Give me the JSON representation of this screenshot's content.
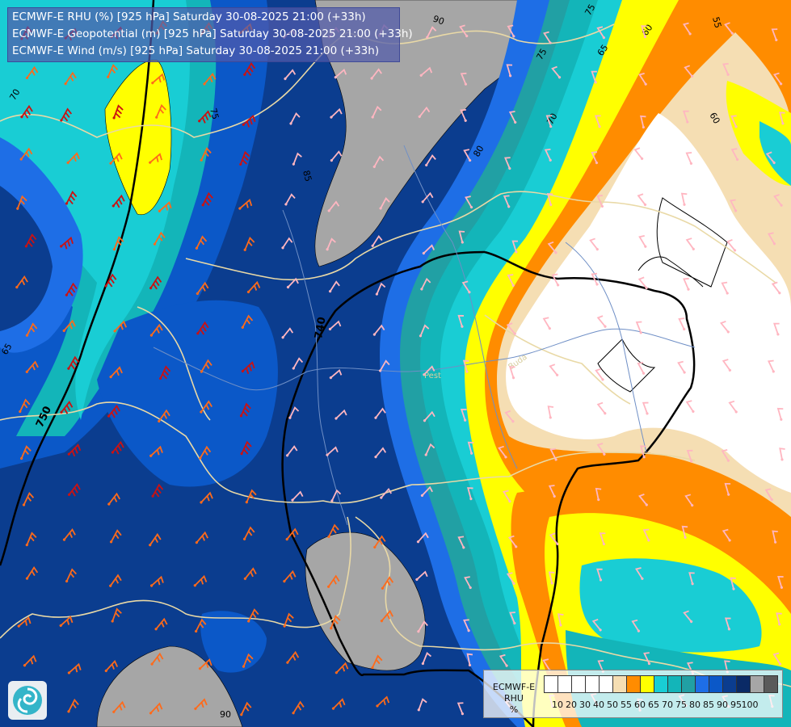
{
  "titles": [
    "ECMWF-E RHU (%) [925 hPa] Saturday 30-08-2025 21:00 (+33h)",
    "ECMWF-E Geopotential (m) [925 hPa] Saturday 30-08-2025 21:00 (+33h)",
    "ECMWF-E Wind (m/s) [925 hPa] Saturday 30-08-2025 21:00 (+33h)"
  ],
  "legend": {
    "model": "ECMWF-E",
    "variable": "RHU",
    "unit": "%",
    "ticks": [
      "10",
      "20",
      "30",
      "40",
      "50",
      "55",
      "60",
      "65",
      "70",
      "75",
      "80",
      "85",
      "90",
      "95",
      "100"
    ],
    "colors": [
      "#ffffff",
      "#ffffff",
      "#ffffff",
      "#ffffff",
      "#ffffff",
      "#f5deb3",
      "#ff8c00",
      "#ffff00",
      "#19cdd4",
      "#13b5b9",
      "#21a0a4",
      "#1e6ee6",
      "#0b58c8",
      "#0b3d8f",
      "#0a2a66",
      "#a6a6a6",
      "#5a5a5a"
    ]
  },
  "contour_labels": {
    "rh": [
      "90",
      "75",
      "65",
      "60",
      "55",
      "60",
      "70",
      "75",
      "80",
      "85",
      "70",
      "75",
      "65",
      "90"
    ],
    "geopotential": [
      "740",
      "750",
      "740"
    ]
  },
  "places": [
    "Pest",
    "Buda"
  ],
  "colors": {
    "border": "#e9d9a6",
    "river": "#6f8fc6",
    "geopotential_line": "#000000",
    "wind_barb_low": "#ffb6c1",
    "wind_barb_mid": "#ff6a1a",
    "wind_barb_high": "#cc1111"
  },
  "icons": {
    "logo": "cyclone-logo-icon"
  }
}
